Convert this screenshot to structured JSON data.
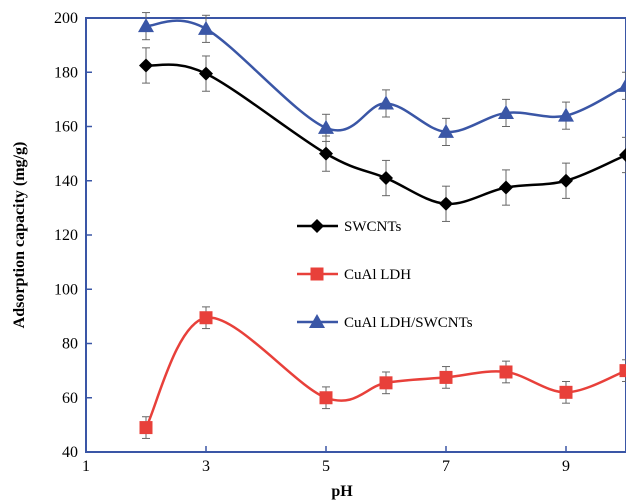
{
  "chart_data": {
    "type": "line",
    "title": "",
    "xlabel": "pH",
    "ylabel": "Adsorption capacity (mg/g)",
    "xlim": [
      1,
      10
    ],
    "ylim": [
      40,
      200
    ],
    "x_ticks": [
      1,
      3,
      5,
      7,
      9
    ],
    "y_ticks": [
      40,
      60,
      80,
      100,
      120,
      140,
      160,
      180,
      200
    ],
    "grid": false,
    "smooth": true,
    "legend_position": "center-left",
    "series": [
      {
        "name": "SWCNTs",
        "color": "#000000",
        "marker": "diamond",
        "points": [
          {
            "x": 2,
            "y": 182.5,
            "err": 6.5
          },
          {
            "x": 3,
            "y": 179.5,
            "err": 6.5
          },
          {
            "x": 5,
            "y": 150,
            "err": 6.5
          },
          {
            "x": 6,
            "y": 141,
            "err": 6.5
          },
          {
            "x": 7,
            "y": 131.5,
            "err": 6.5
          },
          {
            "x": 8,
            "y": 137.5,
            "err": 6.5
          },
          {
            "x": 9,
            "y": 140,
            "err": 6.5
          },
          {
            "x": 10,
            "y": 149.5,
            "err": 6.5
          }
        ]
      },
      {
        "name": "CuAl LDH",
        "color": "#e8403a",
        "marker": "square",
        "points": [
          {
            "x": 2,
            "y": 49,
            "err": 4
          },
          {
            "x": 3,
            "y": 89.5,
            "err": 4
          },
          {
            "x": 5,
            "y": 60,
            "err": 4
          },
          {
            "x": 6,
            "y": 65.5,
            "err": 4
          },
          {
            "x": 7,
            "y": 67.5,
            "err": 4
          },
          {
            "x": 8,
            "y": 69.5,
            "err": 4
          },
          {
            "x": 9,
            "y": 62,
            "err": 4
          },
          {
            "x": 10,
            "y": 70,
            "err": 4
          }
        ]
      },
      {
        "name": "CuAl LDH/SWCNTs",
        "color": "#3a56a6",
        "marker": "triangle",
        "points": [
          {
            "x": 2,
            "y": 197,
            "err": 5
          },
          {
            "x": 3,
            "y": 196,
            "err": 5
          },
          {
            "x": 5,
            "y": 159.5,
            "err": 5
          },
          {
            "x": 6,
            "y": 168.5,
            "err": 5
          },
          {
            "x": 7,
            "y": 158,
            "err": 5
          },
          {
            "x": 8,
            "y": 165,
            "err": 5
          },
          {
            "x": 9,
            "y": 164,
            "err": 5
          },
          {
            "x": 10,
            "y": 175,
            "err": 5
          }
        ]
      }
    ]
  }
}
